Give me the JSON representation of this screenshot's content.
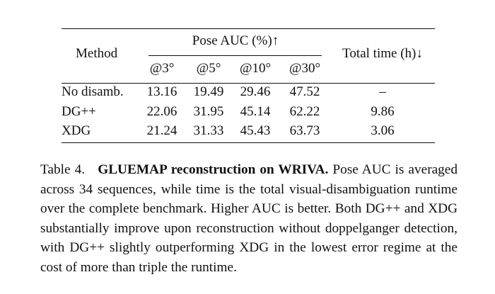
{
  "table": {
    "headers": {
      "method": "Method",
      "pose_auc": "Pose AUC (%)↑",
      "thresholds": [
        "@3°",
        "@5°",
        "@10°",
        "@30°"
      ],
      "time": "Total time (h)↓"
    },
    "rows": [
      [
        "No disamb.",
        "13.16",
        "19.49",
        "29.46",
        "47.52",
        "–"
      ],
      [
        "DG++",
        "22.06",
        "31.95",
        "45.14",
        "62.22",
        "9.86"
      ],
      [
        "XDG",
        "21.24",
        "31.33",
        "45.43",
        "63.73",
        "3.06"
      ]
    ]
  },
  "caption": {
    "label": "Table 4.",
    "title": "GLUEMAP reconstruction on WRIVA.",
    "text": "Pose AUC is averaged across 34 sequences, while time is the total visual-disambiguation runtime over the complete benchmark.  Higher AUC is better.  Both DG++ and XDG substantially improve upon reconstruction without doppelganger detection, with DG++ slightly outperforming XDG in the lowest error regime at the cost of more than triple the runtime."
  }
}
